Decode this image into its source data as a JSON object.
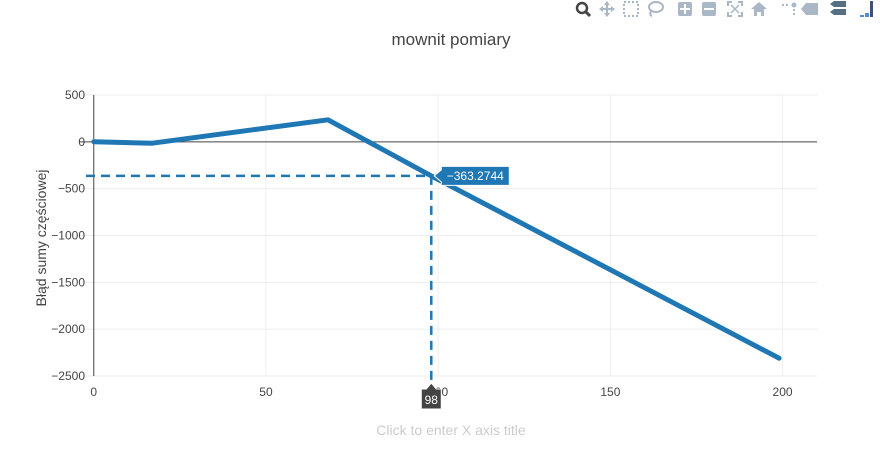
{
  "modebar": {
    "buttons": [
      {
        "name": "zoom-icon",
        "color": "#444444"
      },
      {
        "name": "pan-icon",
        "color": "#a9b7c6"
      },
      {
        "name": "box-select-icon",
        "color": "#a9b7c6"
      },
      {
        "name": "lasso-select-icon",
        "color": "#a9b7c6"
      },
      {
        "name": "zoom-in-icon",
        "color": "#a9b7c6"
      },
      {
        "name": "zoom-out-icon",
        "color": "#a9b7c6"
      },
      {
        "name": "autoscale-icon",
        "color": "#a9b7c6"
      },
      {
        "name": "reset-axes-icon",
        "color": "#a9b7c6"
      },
      {
        "name": "spike-lines-icon",
        "color": "#a9b7c6"
      },
      {
        "name": "hover-closest-icon",
        "color": "#a9b7c6"
      },
      {
        "name": "hover-compare-icon",
        "color": "#586e82"
      },
      {
        "name": "plotly-logo-icon",
        "color": "#3f4f75"
      }
    ]
  },
  "chart_data": {
    "type": "line",
    "title": "mownit pomiary",
    "xlabel": "Click to enter X axis title",
    "ylabel": "Błąd sumy częściowej",
    "xlim": [
      -4,
      210
    ],
    "ylim": [
      -2500,
      500
    ],
    "xticks": [
      0,
      50,
      100,
      150,
      200
    ],
    "xtick_labels": [
      "0",
      "50",
      "100",
      "150",
      "200"
    ],
    "yticks": [
      500,
      0,
      -500,
      -1000,
      -1500,
      -2000,
      -2500
    ],
    "ytick_labels": [
      "500",
      "0",
      "−500",
      "−1000",
      "−1500",
      "−2000",
      "−2500"
    ],
    "grid": true,
    "line_color": "#1f77b4",
    "series": [
      {
        "x": [
          0,
          17,
          68,
          98,
          199
        ],
        "y": [
          0,
          -15,
          235,
          -363.2744,
          -2310
        ]
      }
    ],
    "hover": {
      "x": 98,
      "y": -363.2744,
      "x_label": "98",
      "y_label": "−363.2744"
    }
  }
}
